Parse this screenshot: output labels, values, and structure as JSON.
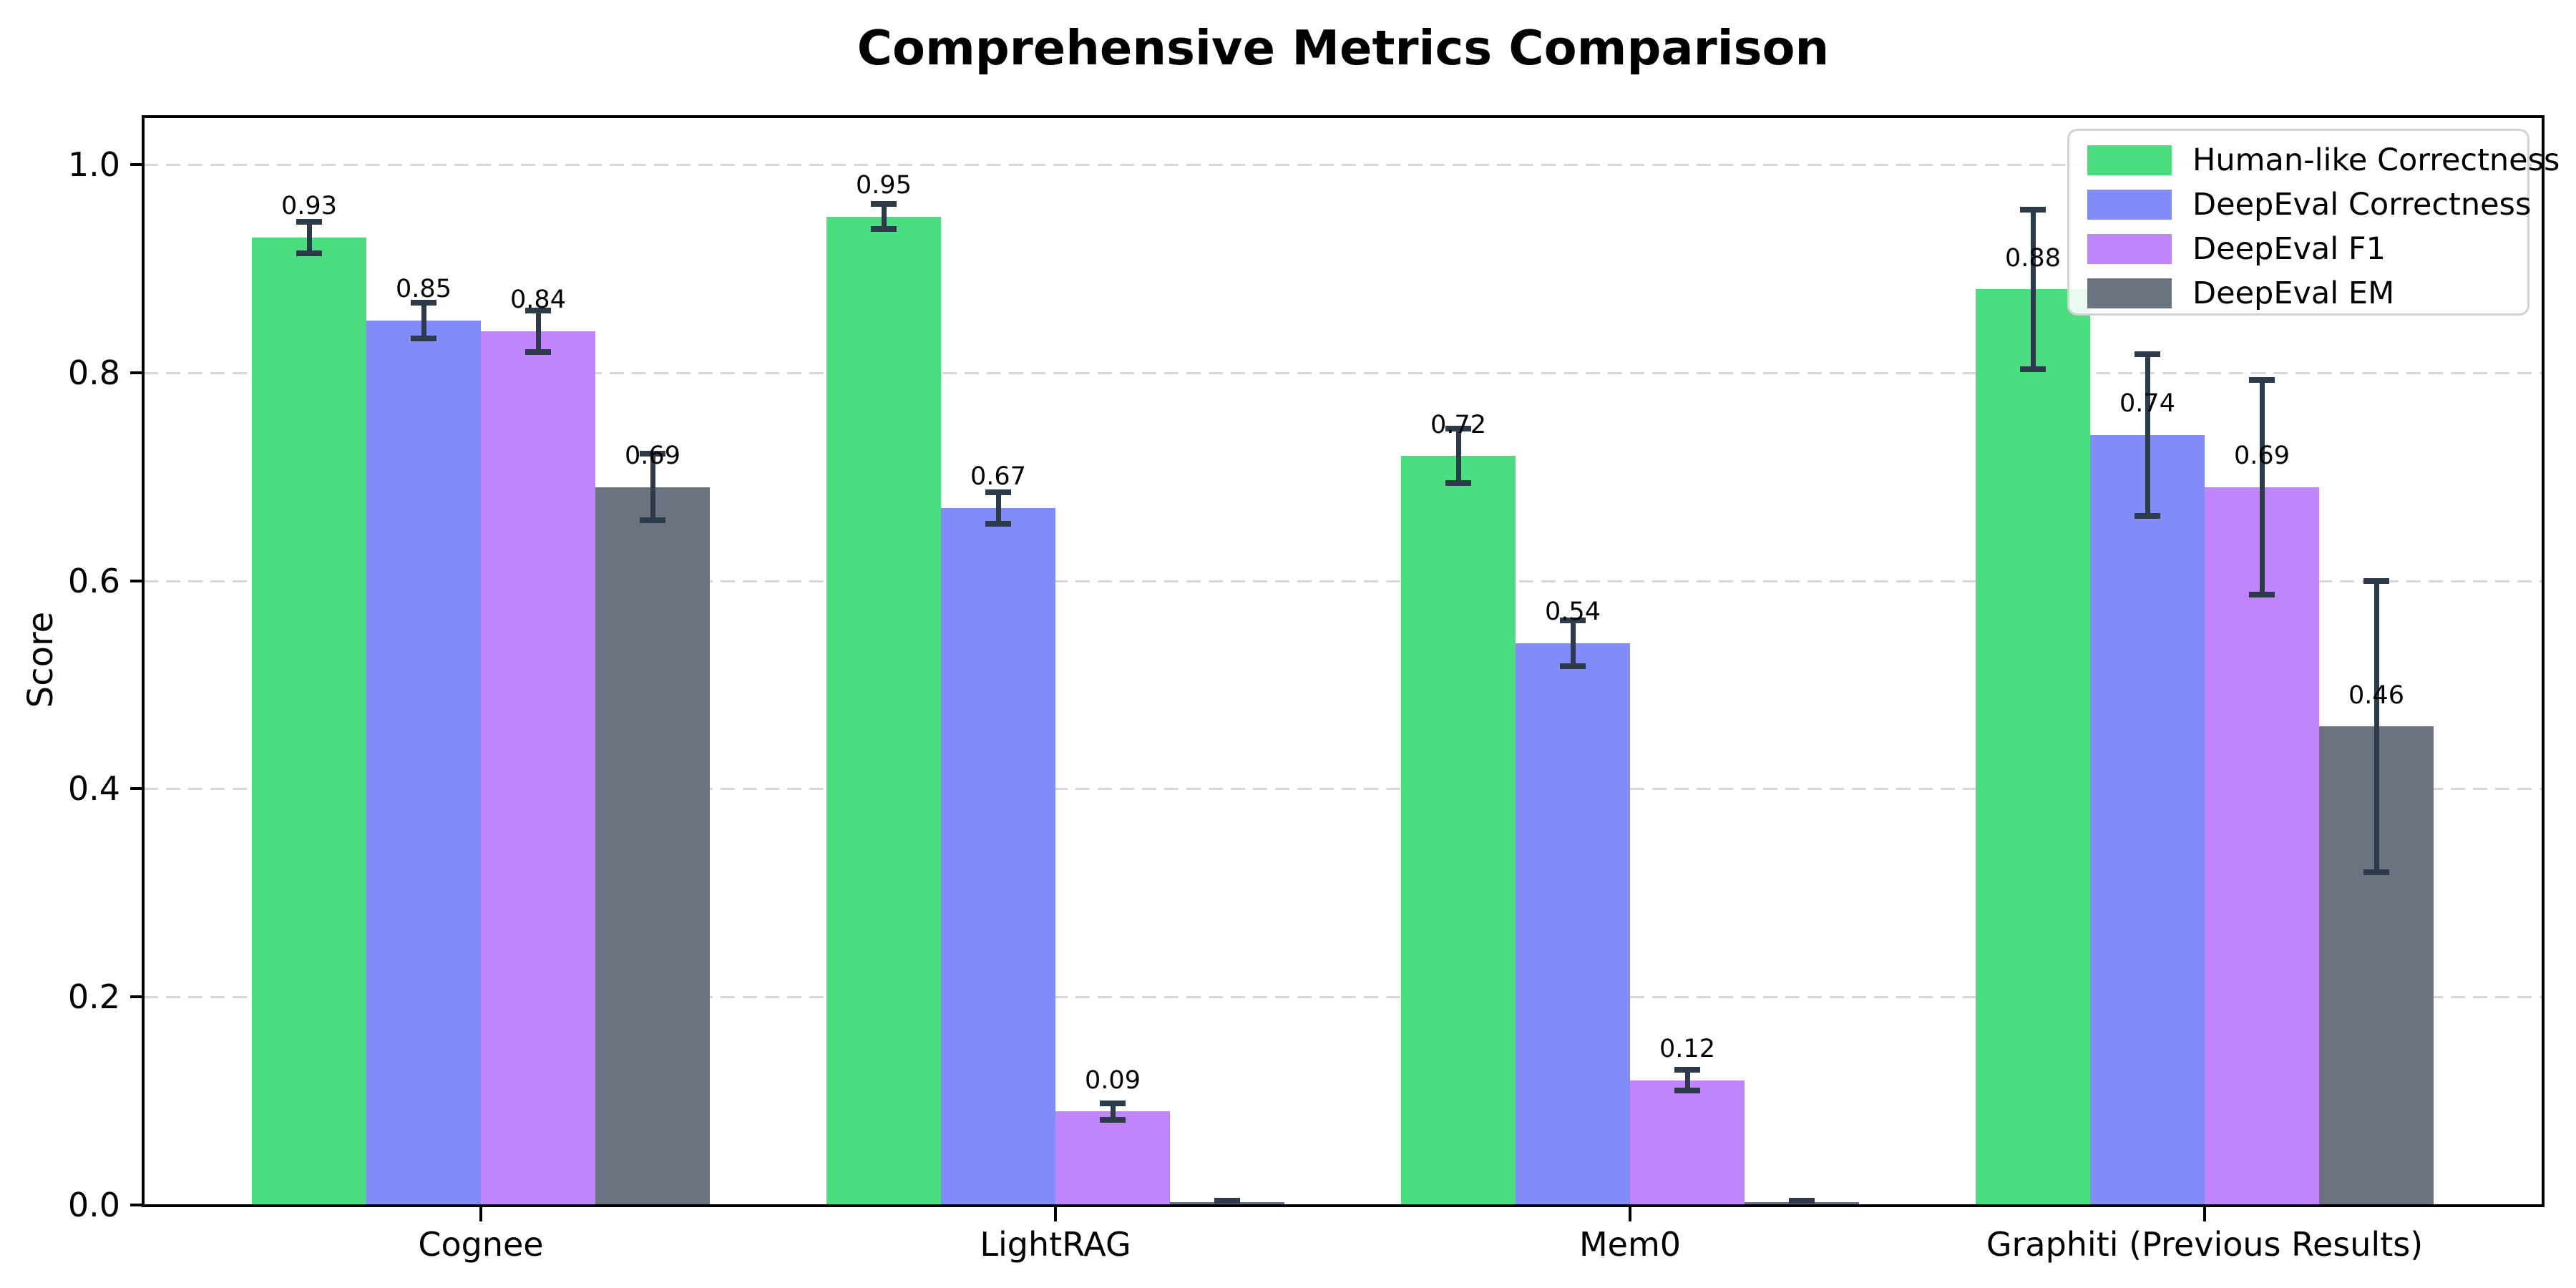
{
  "chart_data": {
    "type": "bar",
    "title": "Comprehensive Metrics Comparison",
    "ylabel": "Score",
    "xlabel": "",
    "categories": [
      "Cognee",
      "LightRAG",
      "Mem0",
      "Graphiti (Previous Results)"
    ],
    "series": [
      {
        "name": "Human-like Correctness",
        "color": "#4ade80",
        "values": [
          0.93,
          0.95,
          0.72,
          0.88
        ],
        "errors": [
          0.015,
          0.012,
          0.026,
          0.077
        ],
        "labels": [
          "0.93",
          "0.95",
          "0.72",
          "0.88"
        ]
      },
      {
        "name": "DeepEval Correctness",
        "color": "#818cf8",
        "values": [
          0.85,
          0.67,
          0.54,
          0.74
        ],
        "errors": [
          0.017,
          0.015,
          0.022,
          0.078
        ],
        "labels": [
          "0.85",
          "0.67",
          "0.54",
          "0.74"
        ]
      },
      {
        "name": "DeepEval F1",
        "color": "#c084fc",
        "values": [
          0.84,
          0.09,
          0.12,
          0.69
        ],
        "errors": [
          0.02,
          0.008,
          0.01,
          0.103
        ],
        "labels": [
          "0.84",
          "0.09",
          "0.12",
          "0.69"
        ]
      },
      {
        "name": "DeepEval EM",
        "color": "#6b7280",
        "values": [
          0.69,
          0.0,
          0.0,
          0.46
        ],
        "errors": [
          0.032,
          0.004,
          0.004,
          0.14
        ],
        "labels": [
          "0.69",
          "",
          "",
          "0.46"
        ]
      }
    ],
    "yticks": [
      "0.0",
      "0.2",
      "0.4",
      "0.6",
      "0.8",
      "1.0"
    ],
    "ytick_values": [
      0,
      0.2,
      0.4,
      0.6,
      0.8,
      1.0
    ],
    "ylim": [
      0,
      1.047
    ],
    "grid": "horizontal-dashed",
    "legend_position": "upper-right",
    "colors": {
      "error_bar": "#2d3a4a",
      "grid_line": "#d8d8d8",
      "spine": "#000000",
      "background": "#ffffff",
      "legend_border": "#d2d2d2"
    }
  }
}
